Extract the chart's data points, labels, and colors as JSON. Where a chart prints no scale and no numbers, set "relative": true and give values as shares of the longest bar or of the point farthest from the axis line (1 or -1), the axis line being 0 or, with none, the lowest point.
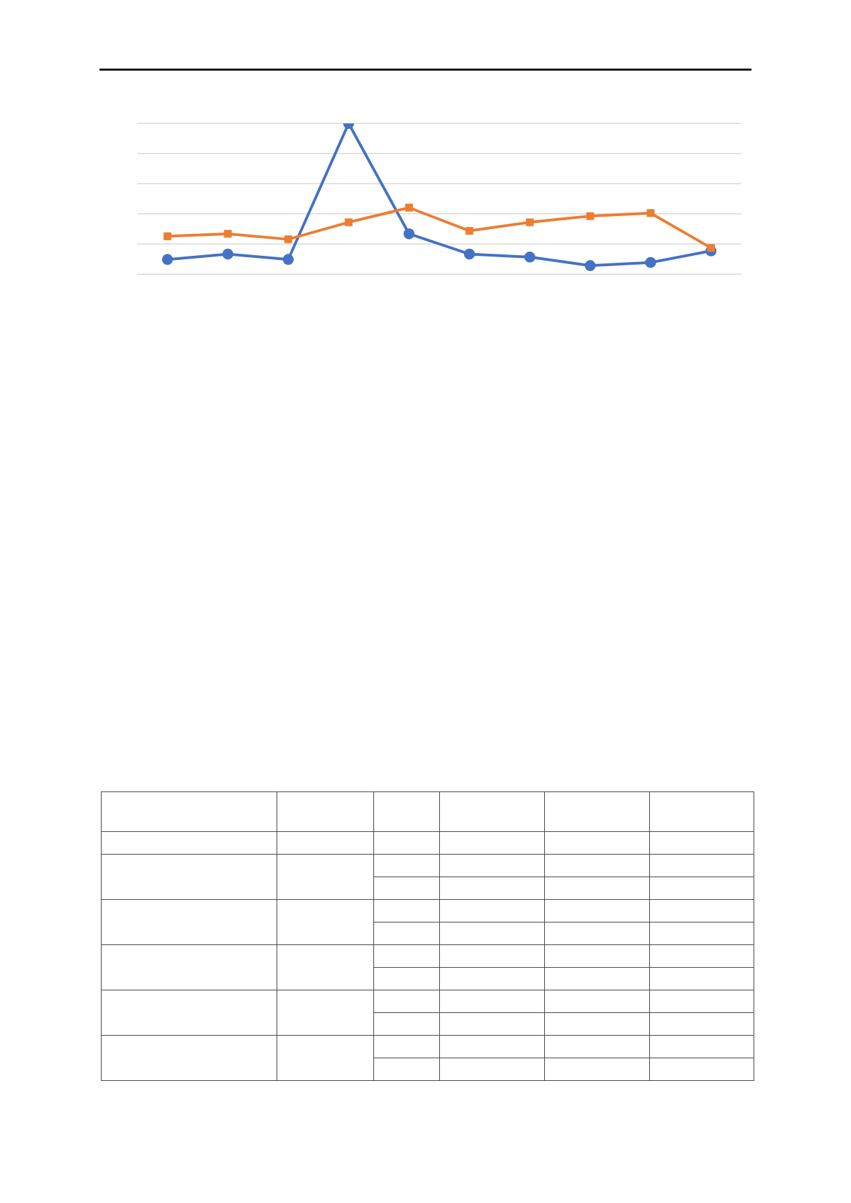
{
  "chart_data": {
    "type": "line",
    "relative": true,
    "categories": [
      null,
      null,
      null,
      null,
      null,
      null,
      null,
      null,
      null,
      null
    ],
    "grid": "y",
    "line_style": "solid",
    "series": [
      {
        "color": "#4472c4",
        "marker": "circle",
        "values": [
          0.097,
          0.133,
          0.097,
          1,
          0.267,
          0.133,
          0.113,
          0.056,
          0.077,
          0.154
        ]
      },
      {
        "color": "#ed7d31",
        "marker": "square",
        "values": [
          0.251,
          0.267,
          0.231,
          0.344,
          0.441,
          0.287,
          0.344,
          0.385,
          0.405,
          0.174
        ]
      }
    ]
  }
}
